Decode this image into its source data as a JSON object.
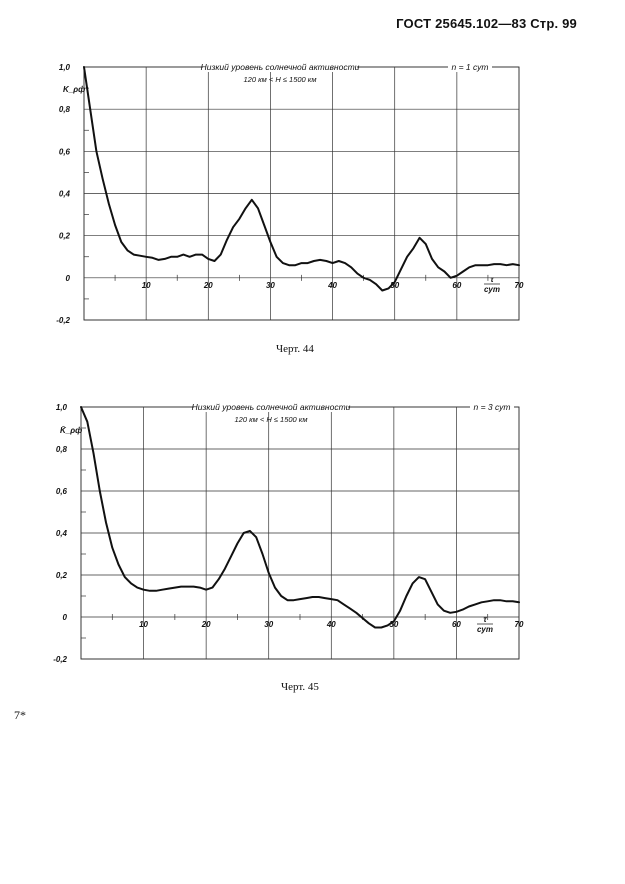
{
  "header": {
    "text": "ГОСТ 25645.102—83 Стр. 99"
  },
  "footnote": "7*",
  "chart_data": [
    {
      "type": "line",
      "title": "Низкий уровень солнечной активности",
      "subtitle": "120 км < H ≤ 1500 км",
      "annotation": "n = 1 сут",
      "ylabel": "K_ρф",
      "xlabel": "τ/сут",
      "caption": "Черт. 44",
      "xlim": [
        0,
        70
      ],
      "ylim": [
        -0.2,
        1.0
      ],
      "x_ticks": [
        "10",
        "20",
        "30",
        "40",
        "50",
        "60",
        "70"
      ],
      "y_ticks": [
        "1,0",
        "0,8",
        "0,6",
        "0,4",
        "0,2",
        "0",
        "-0,2"
      ],
      "grid": true,
      "series": [
        {
          "x": [
            0,
            1,
            2,
            3,
            4,
            5,
            6,
            7,
            8,
            9,
            10,
            11,
            12,
            13,
            14,
            15,
            16,
            17,
            18,
            19,
            20,
            21,
            22,
            23,
            24,
            25,
            26,
            27,
            28,
            29,
            30,
            31,
            32,
            33,
            34,
            35,
            36,
            37,
            38,
            39,
            40,
            41,
            42,
            43,
            44,
            45,
            46,
            47,
            48,
            49,
            50,
            51,
            52,
            53,
            54,
            55,
            56,
            57,
            58,
            59,
            60,
            61,
            62,
            63,
            64,
            65,
            66,
            67,
            68,
            69,
            70
          ],
          "y": [
            1.0,
            0.8,
            0.6,
            0.47,
            0.35,
            0.25,
            0.17,
            0.13,
            0.11,
            0.105,
            0.1,
            0.095,
            0.085,
            0.09,
            0.1,
            0.1,
            0.11,
            0.1,
            0.11,
            0.11,
            0.09,
            0.08,
            0.11,
            0.18,
            0.24,
            0.28,
            0.33,
            0.37,
            0.33,
            0.25,
            0.17,
            0.1,
            0.07,
            0.06,
            0.06,
            0.07,
            0.07,
            0.08,
            0.085,
            0.08,
            0.07,
            0.08,
            0.07,
            0.05,
            0.02,
            0.0,
            -0.01,
            -0.03,
            -0.06,
            -0.05,
            -0.02,
            0.04,
            0.1,
            0.14,
            0.19,
            0.16,
            0.09,
            0.05,
            0.03,
            0.0,
            0.01,
            0.03,
            0.05,
            0.06,
            0.06,
            0.06,
            0.065,
            0.065,
            0.06,
            0.065,
            0.06
          ]
        }
      ]
    },
    {
      "type": "line",
      "title": "Низкий уровень солнечной активности",
      "subtitle": "120 км < H ≤ 1500 км",
      "annotation": "n = 3 сут",
      "ylabel": "K̄_ρф",
      "xlabel": "τ/сут",
      "caption": "Черт. 45",
      "xlim": [
        0,
        70
      ],
      "ylim": [
        -0.2,
        1.0
      ],
      "x_ticks": [
        "10",
        "20",
        "30",
        "40",
        "50",
        "60",
        "70"
      ],
      "y_ticks": [
        "1,0",
        "0,8",
        "0,6",
        "0,4",
        "0,2",
        "0",
        "-0,2"
      ],
      "grid": true,
      "series": [
        {
          "x": [
            0,
            1,
            2,
            3,
            4,
            5,
            6,
            7,
            8,
            9,
            10,
            11,
            12,
            13,
            14,
            15,
            16,
            17,
            18,
            19,
            20,
            21,
            22,
            23,
            24,
            25,
            26,
            27,
            28,
            29,
            30,
            31,
            32,
            33,
            34,
            35,
            36,
            37,
            38,
            39,
            40,
            41,
            42,
            43,
            44,
            45,
            46,
            47,
            48,
            49,
            50,
            51,
            52,
            53,
            54,
            55,
            56,
            57,
            58,
            59,
            60,
            61,
            62,
            63,
            64,
            65,
            66,
            67,
            68,
            69,
            70
          ],
          "y": [
            1.0,
            0.93,
            0.78,
            0.6,
            0.45,
            0.33,
            0.25,
            0.19,
            0.16,
            0.14,
            0.13,
            0.125,
            0.125,
            0.13,
            0.135,
            0.14,
            0.145,
            0.145,
            0.145,
            0.14,
            0.13,
            0.14,
            0.18,
            0.23,
            0.29,
            0.35,
            0.4,
            0.41,
            0.38,
            0.3,
            0.21,
            0.14,
            0.1,
            0.08,
            0.08,
            0.085,
            0.09,
            0.095,
            0.095,
            0.09,
            0.085,
            0.08,
            0.06,
            0.04,
            0.02,
            -0.005,
            -0.03,
            -0.05,
            -0.05,
            -0.04,
            -0.02,
            0.03,
            0.1,
            0.16,
            0.19,
            0.18,
            0.12,
            0.06,
            0.03,
            0.02,
            0.025,
            0.035,
            0.05,
            0.06,
            0.07,
            0.075,
            0.08,
            0.08,
            0.075,
            0.075,
            0.07
          ]
        }
      ]
    }
  ]
}
